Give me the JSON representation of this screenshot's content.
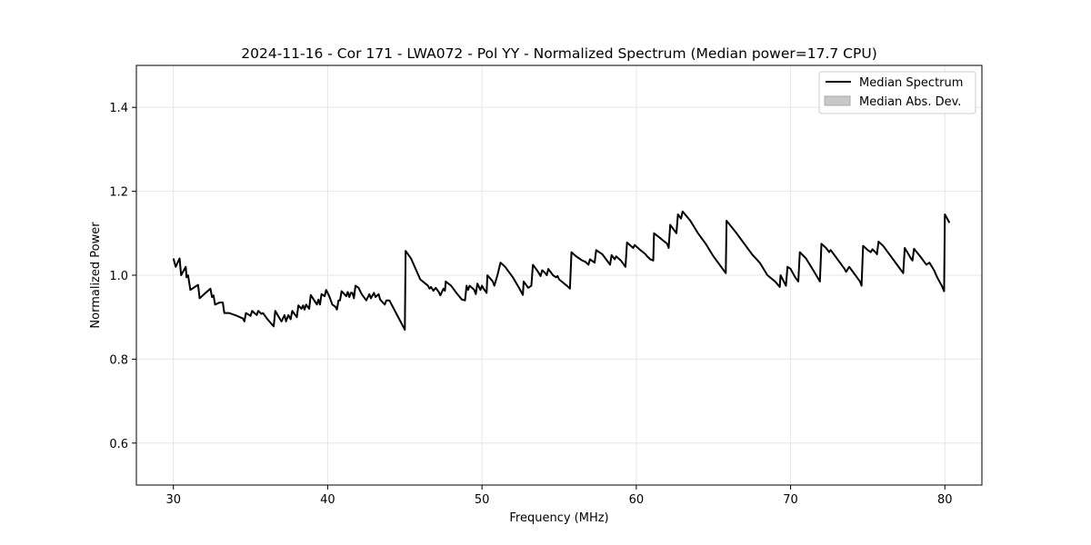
{
  "chart_data": {
    "type": "line",
    "title": "2024-11-16 - Cor 171 - LWA072 - Pol YY - Normalized Spectrum (Median power=17.7 CPU)",
    "xlabel": "Frequency (MHz)",
    "ylabel": "Normalized Power",
    "xlim": [
      27.6,
      82.4
    ],
    "ylim": [
      0.5,
      1.5
    ],
    "xticks": [
      30,
      40,
      50,
      60,
      70,
      80
    ],
    "yticks": [
      0.6,
      0.8,
      1.0,
      1.2,
      1.4
    ],
    "xtick_labels": [
      "30",
      "40",
      "50",
      "60",
      "70",
      "80"
    ],
    "ytick_labels": [
      "0.6",
      "0.8",
      "1.0",
      "1.2",
      "1.4"
    ],
    "grid": true,
    "legend_position": "top-right",
    "legend": [
      {
        "label": "Median Spectrum",
        "kind": "line",
        "color": "#000000"
      },
      {
        "label": "Median Abs. Dev.",
        "kind": "patch",
        "color": "#c8c8c8"
      }
    ],
    "series": [
      {
        "name": "Median Spectrum",
        "color": "#000000",
        "points": [
          [
            30.0,
            1.04
          ],
          [
            30.15,
            1.02
          ],
          [
            30.4,
            1.04
          ],
          [
            30.5,
            1.0
          ],
          [
            30.8,
            1.02
          ],
          [
            30.85,
            0.995
          ],
          [
            30.95,
            1.0
          ],
          [
            31.1,
            0.965
          ],
          [
            31.3,
            0.97
          ],
          [
            31.6,
            0.977
          ],
          [
            31.7,
            0.945
          ],
          [
            32.0,
            0.955
          ],
          [
            32.4,
            0.968
          ],
          [
            32.5,
            0.948
          ],
          [
            32.6,
            0.952
          ],
          [
            32.7,
            0.93
          ],
          [
            33.0,
            0.935
          ],
          [
            33.2,
            0.935
          ],
          [
            33.3,
            0.91
          ],
          [
            33.6,
            0.91
          ],
          [
            34.0,
            0.905
          ],
          [
            34.5,
            0.897
          ],
          [
            34.6,
            0.89
          ],
          [
            34.7,
            0.91
          ],
          [
            35.0,
            0.903
          ],
          [
            35.1,
            0.915
          ],
          [
            35.4,
            0.905
          ],
          [
            35.5,
            0.915
          ],
          [
            35.7,
            0.908
          ],
          [
            35.8,
            0.91
          ],
          [
            36.0,
            0.9
          ],
          [
            36.1,
            0.895
          ],
          [
            36.5,
            0.878
          ],
          [
            36.6,
            0.915
          ],
          [
            37.0,
            0.89
          ],
          [
            37.05,
            0.893
          ],
          [
            37.2,
            0.905
          ],
          [
            37.3,
            0.89
          ],
          [
            37.45,
            0.905
          ],
          [
            37.6,
            0.895
          ],
          [
            37.7,
            0.915
          ],
          [
            38.0,
            0.9
          ],
          [
            38.1,
            0.928
          ],
          [
            38.3,
            0.92
          ],
          [
            38.4,
            0.928
          ],
          [
            38.5,
            0.918
          ],
          [
            38.6,
            0.93
          ],
          [
            38.8,
            0.92
          ],
          [
            38.9,
            0.953
          ],
          [
            39.3,
            0.93
          ],
          [
            39.4,
            0.942
          ],
          [
            39.5,
            0.93
          ],
          [
            39.6,
            0.955
          ],
          [
            39.8,
            0.95
          ],
          [
            39.9,
            0.965
          ],
          [
            40.1,
            0.95
          ],
          [
            40.3,
            0.93
          ],
          [
            40.5,
            0.925
          ],
          [
            40.6,
            0.918
          ],
          [
            40.7,
            0.94
          ],
          [
            40.8,
            0.94
          ],
          [
            40.9,
            0.962
          ],
          [
            41.2,
            0.95
          ],
          [
            41.3,
            0.96
          ],
          [
            41.4,
            0.948
          ],
          [
            41.5,
            0.958
          ],
          [
            41.6,
            0.958
          ],
          [
            41.7,
            0.945
          ],
          [
            41.8,
            0.975
          ],
          [
            42.0,
            0.97
          ],
          [
            42.2,
            0.955
          ],
          [
            42.5,
            0.94
          ],
          [
            42.7,
            0.955
          ],
          [
            42.8,
            0.945
          ],
          [
            43.0,
            0.958
          ],
          [
            43.1,
            0.948
          ],
          [
            43.3,
            0.955
          ],
          [
            43.4,
            0.942
          ],
          [
            43.7,
            0.93
          ],
          [
            43.8,
            0.94
          ],
          [
            44.0,
            0.94
          ],
          [
            44.5,
            0.905
          ],
          [
            45.0,
            0.87
          ],
          [
            45.05,
            1.058
          ],
          [
            45.4,
            1.04
          ],
          [
            45.7,
            1.015
          ],
          [
            46.0,
            0.99
          ],
          [
            46.5,
            0.975
          ],
          [
            46.6,
            0.968
          ],
          [
            46.7,
            0.972
          ],
          [
            46.85,
            0.963
          ],
          [
            47.0,
            0.97
          ],
          [
            47.2,
            0.96
          ],
          [
            47.3,
            0.952
          ],
          [
            47.5,
            0.968
          ],
          [
            47.6,
            0.963
          ],
          [
            47.65,
            0.985
          ],
          [
            48.0,
            0.975
          ],
          [
            48.4,
            0.955
          ],
          [
            48.7,
            0.942
          ],
          [
            48.9,
            0.94
          ],
          [
            49.0,
            0.975
          ],
          [
            49.1,
            0.965
          ],
          [
            49.2,
            0.975
          ],
          [
            49.5,
            0.965
          ],
          [
            49.6,
            0.955
          ],
          [
            49.7,
            0.98
          ],
          [
            49.9,
            0.965
          ],
          [
            50.0,
            0.975
          ],
          [
            50.1,
            0.968
          ],
          [
            50.3,
            0.958
          ],
          [
            50.35,
            1.0
          ],
          [
            50.7,
            0.985
          ],
          [
            50.8,
            0.975
          ],
          [
            51.0,
            1.0
          ],
          [
            51.2,
            1.03
          ],
          [
            51.5,
            1.02
          ],
          [
            52.0,
            0.995
          ],
          [
            52.4,
            0.97
          ],
          [
            52.65,
            0.953
          ],
          [
            52.7,
            0.985
          ],
          [
            52.9,
            0.975
          ],
          [
            53.0,
            0.97
          ],
          [
            53.2,
            0.975
          ],
          [
            53.3,
            1.025
          ],
          [
            53.6,
            1.01
          ],
          [
            53.8,
            0.998
          ],
          [
            53.9,
            1.012
          ],
          [
            54.1,
            1.005
          ],
          [
            54.2,
            1.0
          ],
          [
            54.3,
            1.015
          ],
          [
            54.6,
            1.0
          ],
          [
            54.8,
            0.995
          ],
          [
            54.9,
            0.998
          ],
          [
            55.0,
            0.99
          ],
          [
            55.5,
            0.975
          ],
          [
            55.7,
            0.968
          ],
          [
            55.8,
            1.055
          ],
          [
            56.1,
            1.045
          ],
          [
            56.5,
            1.035
          ],
          [
            56.7,
            1.032
          ],
          [
            56.9,
            1.025
          ],
          [
            57.0,
            1.038
          ],
          [
            57.3,
            1.03
          ],
          [
            57.4,
            1.06
          ],
          [
            57.8,
            1.05
          ],
          [
            58.0,
            1.04
          ],
          [
            58.2,
            1.03
          ],
          [
            58.3,
            1.025
          ],
          [
            58.4,
            1.048
          ],
          [
            58.6,
            1.038
          ],
          [
            58.7,
            1.045
          ],
          [
            59.0,
            1.035
          ],
          [
            59.3,
            1.02
          ],
          [
            59.4,
            1.078
          ],
          [
            59.8,
            1.065
          ],
          [
            59.9,
            1.072
          ],
          [
            60.2,
            1.062
          ],
          [
            60.6,
            1.05
          ],
          [
            60.7,
            1.045
          ],
          [
            60.8,
            1.042
          ],
          [
            60.9,
            1.038
          ],
          [
            61.1,
            1.035
          ],
          [
            61.15,
            1.1
          ],
          [
            61.5,
            1.09
          ],
          [
            62.0,
            1.075
          ],
          [
            62.1,
            1.065
          ],
          [
            62.2,
            1.12
          ],
          [
            62.6,
            1.1
          ],
          [
            62.7,
            1.145
          ],
          [
            62.9,
            1.135
          ],
          [
            63.0,
            1.152
          ],
          [
            63.5,
            1.13
          ],
          [
            64.0,
            1.1
          ],
          [
            64.5,
            1.075
          ],
          [
            65.0,
            1.045
          ],
          [
            65.5,
            1.02
          ],
          [
            65.8,
            1.005
          ],
          [
            65.85,
            1.13
          ],
          [
            66.5,
            1.1
          ],
          [
            67.0,
            1.075
          ],
          [
            67.5,
            1.05
          ],
          [
            68.0,
            1.03
          ],
          [
            68.5,
            1.0
          ],
          [
            69.0,
            0.985
          ],
          [
            69.3,
            0.972
          ],
          [
            69.35,
            1.0
          ],
          [
            69.7,
            0.975
          ],
          [
            69.8,
            1.02
          ],
          [
            70.0,
            1.015
          ],
          [
            70.3,
            0.995
          ],
          [
            70.5,
            0.985
          ],
          [
            70.6,
            1.055
          ],
          [
            71.0,
            1.04
          ],
          [
            71.5,
            1.01
          ],
          [
            71.9,
            0.985
          ],
          [
            72.0,
            1.075
          ],
          [
            72.3,
            1.065
          ],
          [
            72.5,
            1.055
          ],
          [
            72.6,
            1.06
          ],
          [
            73.0,
            1.04
          ],
          [
            73.5,
            1.015
          ],
          [
            73.6,
            1.008
          ],
          [
            73.8,
            1.02
          ],
          [
            74.0,
            1.01
          ],
          [
            74.5,
            0.985
          ],
          [
            74.6,
            0.975
          ],
          [
            74.7,
            1.07
          ],
          [
            75.0,
            1.06
          ],
          [
            75.2,
            1.055
          ],
          [
            75.3,
            1.062
          ],
          [
            75.5,
            1.055
          ],
          [
            75.6,
            1.05
          ],
          [
            75.7,
            1.08
          ],
          [
            76.0,
            1.07
          ],
          [
            76.5,
            1.045
          ],
          [
            77.0,
            1.02
          ],
          [
            77.3,
            1.005
          ],
          [
            77.4,
            1.065
          ],
          [
            77.8,
            1.04
          ],
          [
            77.9,
            1.035
          ],
          [
            78.0,
            1.063
          ],
          [
            78.4,
            1.045
          ],
          [
            78.6,
            1.035
          ],
          [
            78.8,
            1.025
          ],
          [
            79.0,
            1.03
          ],
          [
            79.3,
            1.012
          ],
          [
            79.5,
            0.995
          ],
          [
            79.8,
            0.975
          ],
          [
            79.95,
            0.962
          ],
          [
            80.0,
            1.145
          ],
          [
            80.3,
            1.125
          ]
        ]
      }
    ]
  }
}
